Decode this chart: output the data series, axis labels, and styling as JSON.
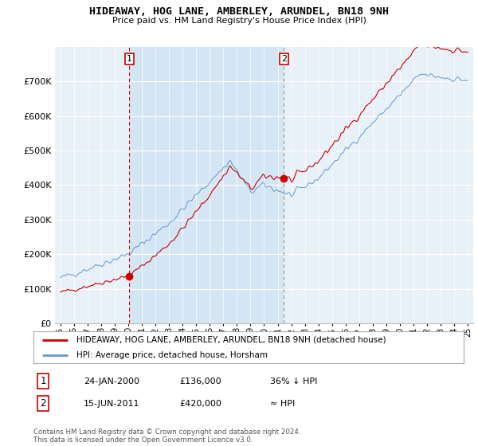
{
  "title": "HIDEAWAY, HOG LANE, AMBERLEY, ARUNDEL, BN18 9NH",
  "subtitle": "Price paid vs. HM Land Registry's House Price Index (HPI)",
  "red_label": "HIDEAWAY, HOG LANE, AMBERLEY, ARUNDEL, BN18 9NH (detached house)",
  "blue_label": "HPI: Average price, detached house, Horsham",
  "annotation1_date": "24-JAN-2000",
  "annotation1_price": "£136,000",
  "annotation1_hpi": "36% ↓ HPI",
  "annotation2_date": "15-JUN-2011",
  "annotation2_price": "£420,000",
  "annotation2_hpi": "≈ HPI",
  "footnote": "Contains HM Land Registry data © Crown copyright and database right 2024.\nThis data is licensed under the Open Government Licence v3.0.",
  "ylim": [
    0,
    800000
  ],
  "yticks": [
    0,
    100000,
    200000,
    300000,
    400000,
    500000,
    600000,
    700000
  ],
  "ytick_labels": [
    "£0",
    "£100K",
    "£200K",
    "£300K",
    "£400K",
    "£500K",
    "£600K",
    "£700K"
  ],
  "red_color": "#cc0000",
  "blue_color": "#6699cc",
  "background_color": "#ffffff",
  "plot_bg_color": "#e8f0f8",
  "shade_color": "#d0e4f4",
  "grid_color": "#ffffff",
  "sale1_year": 2000.07,
  "sale1_val": 136000,
  "sale2_year": 2011.46,
  "sale2_val": 420000
}
